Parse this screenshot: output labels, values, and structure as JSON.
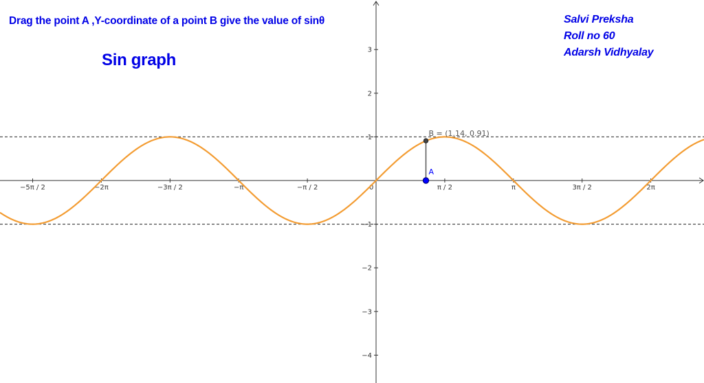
{
  "instruction_text": "Drag the point  A ,Y-coordinate of a point B give the value of sinθ",
  "title": "Sin graph",
  "credits": [
    "Salvi Preksha",
    "Roll no 60",
    "Adarsh Vidhyalay"
  ],
  "x_tick_labels": [
    "−5π / 2",
    "−2π",
    "−3π / 2",
    "−π",
    "−π / 2",
    "π / 2",
    "π",
    "3π / 2",
    "2π"
  ],
  "y_tick_labels": [
    "3",
    "2",
    "1",
    "−1",
    "−2",
    "−3",
    "−4"
  ],
  "origin_label": "0",
  "point_a": {
    "label": "A",
    "x": 1.14,
    "y": 0
  },
  "point_b": {
    "label": "B = (1.14, 0.91)",
    "x": 1.14,
    "y": 0.91
  },
  "colors": {
    "curve": "#f39c32",
    "text": "#0000e6",
    "point_a": "#0000ff",
    "point_b": "#444444",
    "axis": "#333333"
  },
  "chart_data": {
    "type": "line",
    "function": "y = sin(x)",
    "x_range": [
      -8.45,
      7.57
    ],
    "y_range": [
      -4.5,
      4.1
    ],
    "asymptote_lines": [
      1,
      -1
    ],
    "x_ticks": [
      -7.854,
      -6.283,
      -4.712,
      -3.142,
      -1.571,
      1.571,
      3.142,
      4.712,
      6.283
    ],
    "y_ticks": [
      3,
      2,
      1,
      -1,
      -2,
      -3,
      -4
    ],
    "grid": false
  }
}
